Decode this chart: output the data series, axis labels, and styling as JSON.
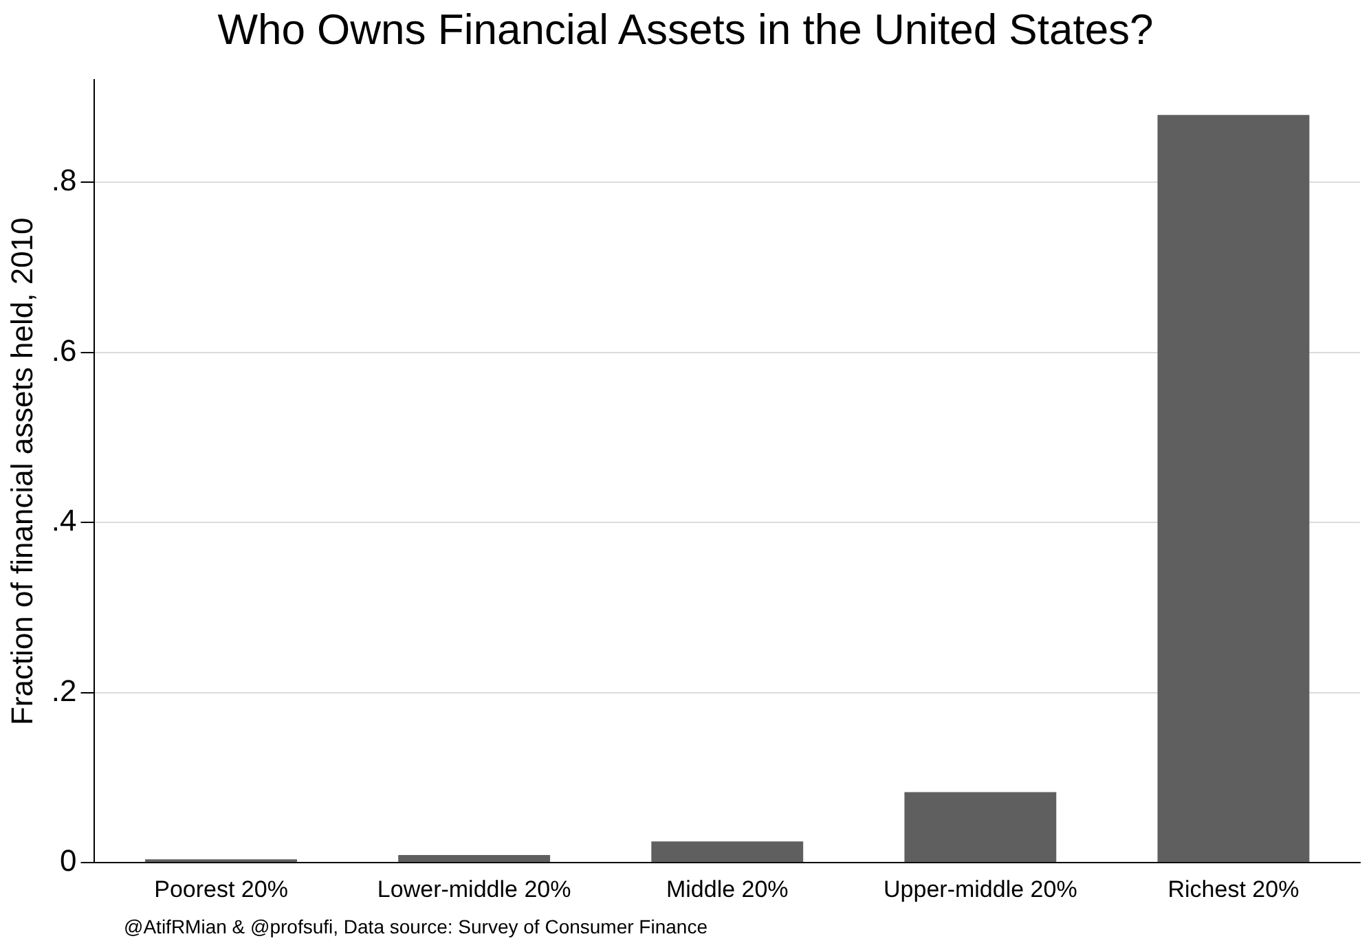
{
  "chart_data": {
    "type": "bar",
    "title": "Who Owns Financial Assets in the United States?",
    "ylabel": "Fraction of financial assets held, 2010",
    "categories": [
      "Poorest 20%",
      "Lower-middle 20%",
      "Middle 20%",
      "Upper-middle 20%",
      "Richest 20%"
    ],
    "values": [
      0.004,
      0.009,
      0.025,
      0.083,
      0.879
    ],
    "color": "#5f5f5f",
    "ylim": [
      0,
      0.92
    ],
    "yticks": [
      0,
      {
        "value": 0.2,
        "label": ".2"
      },
      {
        "value": 0.4,
        "label": ".4"
      },
      {
        "value": 0.6,
        "label": ".6"
      },
      {
        "value": 0.8,
        "label": ".8"
      }
    ],
    "grid": "y",
    "legend": false,
    "annotations": [
      "@AtifRMian & @profsufi, Data source: Survey of Consumer Finance"
    ]
  }
}
